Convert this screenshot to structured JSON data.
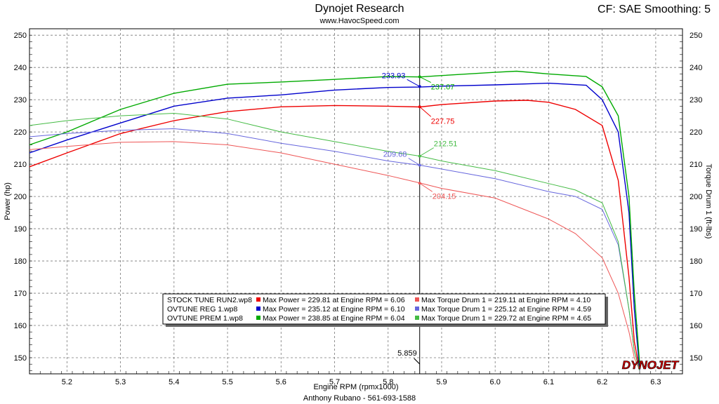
{
  "header": {
    "title": "Dynojet Research",
    "subtitle": "www.HavocSpeed.com",
    "right_text": "CF: SAE Smoothing: 5"
  },
  "footer": {
    "text": "Anthony Rubano - 561-693-1588"
  },
  "logo": {
    "text": "DYNOJET"
  },
  "colors": {
    "red": "#ee0000",
    "blue": "#0000cc",
    "green": "#00aa00",
    "red_light": "#ee5555",
    "blue_light": "#6666dd",
    "green_light": "#44bb44"
  },
  "chart_data": {
    "type": "line",
    "xlabel": "Engine RPM (rpmx1000)",
    "ylabel": "Power (hp)",
    "y2label": "Torque Drum 1 (ft-lbs)",
    "xlim": [
      5.13,
      6.35
    ],
    "ylim": [
      145,
      252
    ],
    "xticks": [
      5.2,
      5.3,
      5.4,
      5.5,
      5.6,
      5.7,
      5.8,
      5.9,
      6.0,
      6.1,
      6.2,
      6.3
    ],
    "yticks": [
      150,
      160,
      170,
      180,
      190,
      200,
      210,
      220,
      230,
      240,
      250
    ],
    "grid": true,
    "cursor": {
      "x": 5.859,
      "label": "5.859",
      "readouts": [
        {
          "series": "blue",
          "value": "233.93",
          "y": 234.1
        },
        {
          "series": "green",
          "value": "237.07",
          "y": 237.1
        },
        {
          "series": "red",
          "value": "227.75",
          "y": 227.8
        },
        {
          "series": "blue_light",
          "value": "209.68",
          "y": 209.7
        },
        {
          "series": "green_light",
          "value": "212.51",
          "y": 212.5
        },
        {
          "series": "red_light",
          "value": "204.15",
          "y": 204.1
        }
      ]
    },
    "series": [
      {
        "name": "STOCK TUNE RUN2.wp8",
        "kind": "power",
        "color": "red",
        "x": [
          5.13,
          5.2,
          5.3,
          5.4,
          5.5,
          5.6,
          5.7,
          5.8,
          5.86,
          5.9,
          6.0,
          6.06,
          6.1,
          6.15,
          6.2,
          6.23,
          6.25,
          6.26,
          6.27
        ],
        "y": [
          209.2,
          213.5,
          219.5,
          223.5,
          226.3,
          227.8,
          228.2,
          228.0,
          227.75,
          228.5,
          229.6,
          229.81,
          229.2,
          227.0,
          222.0,
          205.0,
          175.0,
          155.0,
          146.0
        ]
      },
      {
        "name": "OVTUNE REG 1.wp8",
        "kind": "power",
        "color": "blue",
        "x": [
          5.13,
          5.2,
          5.3,
          5.4,
          5.5,
          5.6,
          5.7,
          5.8,
          5.86,
          5.9,
          6.0,
          6.1,
          6.17,
          6.2,
          6.23,
          6.25,
          6.26,
          6.27
        ],
        "y": [
          213.5,
          217.5,
          222.8,
          228.0,
          230.5,
          231.5,
          233.0,
          233.8,
          233.93,
          234.2,
          234.6,
          235.12,
          234.5,
          230.0,
          220.0,
          195.0,
          165.0,
          146.0
        ]
      },
      {
        "name": "OVTUNE PREM 1.wp8",
        "kind": "power",
        "color": "green",
        "x": [
          5.13,
          5.2,
          5.3,
          5.4,
          5.5,
          5.6,
          5.7,
          5.8,
          5.86,
          5.9,
          6.0,
          6.04,
          6.1,
          6.17,
          6.2,
          6.23,
          6.25,
          6.26,
          6.27
        ],
        "y": [
          216.0,
          220.0,
          227.0,
          232.0,
          234.8,
          235.5,
          236.3,
          237.2,
          237.07,
          237.5,
          238.5,
          238.85,
          238.0,
          237.2,
          234.0,
          225.0,
          200.0,
          170.0,
          148.0
        ]
      },
      {
        "name": "STOCK TUNE RUN2.wp8",
        "kind": "torque",
        "color": "red_light",
        "x": [
          5.13,
          5.2,
          5.3,
          5.4,
          5.5,
          5.6,
          5.7,
          5.8,
          5.86,
          5.9,
          6.0,
          6.1,
          6.15,
          6.2,
          6.23,
          6.25,
          6.26,
          6.27
        ],
        "y": [
          214.5,
          215.5,
          216.8,
          217.0,
          216.0,
          213.5,
          210.0,
          206.5,
          204.15,
          202.5,
          199.5,
          193.0,
          188.5,
          181.0,
          170.0,
          158.0,
          150.0,
          146.0
        ]
      },
      {
        "name": "OVTUNE REG 1.wp8",
        "kind": "torque",
        "color": "blue_light",
        "x": [
          5.13,
          5.2,
          5.3,
          5.4,
          5.5,
          5.6,
          5.7,
          5.8,
          5.86,
          5.9,
          6.0,
          6.1,
          6.15,
          6.2,
          6.23,
          6.25,
          6.26,
          6.27
        ],
        "y": [
          218.5,
          219.5,
          220.5,
          221.0,
          219.5,
          216.5,
          214.0,
          211.0,
          209.68,
          208.5,
          205.5,
          201.5,
          200.0,
          196.0,
          185.0,
          165.0,
          152.0,
          146.0
        ]
      },
      {
        "name": "OVTUNE PREM 1.wp8",
        "kind": "torque",
        "color": "green_light",
        "x": [
          5.13,
          5.2,
          5.3,
          5.4,
          5.5,
          5.6,
          5.7,
          5.8,
          5.86,
          5.9,
          6.0,
          6.1,
          6.15,
          6.2,
          6.23,
          6.25,
          6.26,
          6.27
        ],
        "y": [
          222.0,
          223.5,
          225.0,
          225.8,
          224.0,
          220.0,
          217.0,
          214.0,
          212.51,
          211.0,
          208.0,
          204.0,
          202.0,
          198.0,
          186.0,
          165.0,
          152.0,
          146.0
        ]
      }
    ],
    "legend": {
      "placement": "bottom-center",
      "rows": [
        {
          "run": "STOCK TUNE RUN2.wp8",
          "power_color": "red",
          "torque_color": "red_light",
          "power_text": "Max Power = 229.81 at Engine RPM = 6.06",
          "torque_text": "Max Torque Drum 1 = 219.11 at Engine RPM = 4.10"
        },
        {
          "run": "OVTUNE REG 1.wp8",
          "power_color": "blue",
          "torque_color": "blue_light",
          "power_text": "Max Power = 235.12 at Engine RPM = 6.10",
          "torque_text": "Max Torque Drum 1 = 225.12 at Engine RPM = 4.59"
        },
        {
          "run": "OVTUNE PREM 1.wp8",
          "power_color": "green",
          "torque_color": "green_light",
          "power_text": "Max Power = 238.85 at Engine RPM = 6.04",
          "torque_text": "Max Torque Drum 1 = 229.72 at Engine RPM = 4.65"
        }
      ]
    }
  }
}
